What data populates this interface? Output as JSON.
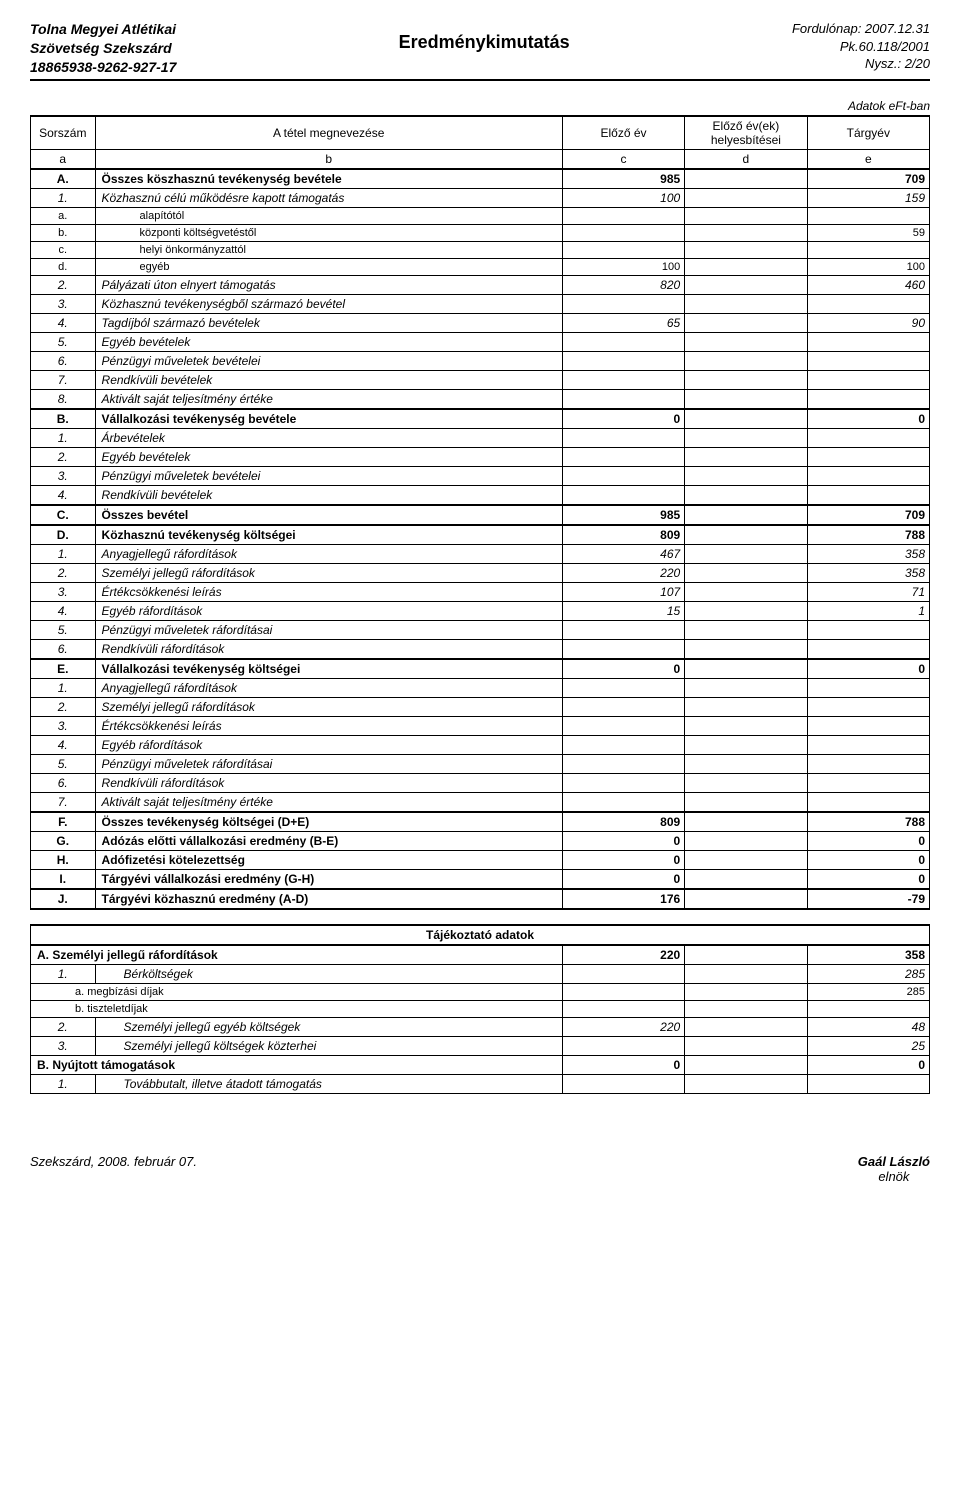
{
  "header": {
    "org_line1": "Tolna Megyei Atlétikai",
    "org_line2": "Szövetség  Szekszárd",
    "org_line3": "18865938-9262-927-17",
    "title": "Eredménykimutatás",
    "right_line1": "Fordulónap: 2007.12.31",
    "right_line2": "Pk.60.118/2001",
    "right_line3": "Nysz.: 2/20"
  },
  "adatok_label": "Adatok eFt-ban",
  "cols": {
    "sorszam": "Sorszám",
    "megnevezes": "A tétel megnevezése",
    "elozo": "Előző év",
    "helyesbites": "Előző év(ek) helyesbítései",
    "targyev": "Tárgyév",
    "a": "a",
    "b": "b",
    "c": "c",
    "d": "d",
    "e": "e"
  },
  "rows": [
    {
      "cls": "row-main",
      "id": "A.",
      "name": "Összes köszhasznú tevékenység bevétele",
      "c": "985",
      "d": "",
      "e": "709"
    },
    {
      "cls": "row-sub",
      "id": "1.",
      "name": "Közhasznú célú működésre kapott támogatás",
      "c": "100",
      "d": "",
      "e": "159"
    },
    {
      "cls": "row-subsub",
      "id": "a.",
      "name": "alapítótól",
      "c": "",
      "d": "",
      "e": ""
    },
    {
      "cls": "row-subsub",
      "id": "b.",
      "name": "központi költségvetéstől",
      "c": "",
      "d": "",
      "e": "59"
    },
    {
      "cls": "row-subsub",
      "id": "c.",
      "name": "helyi önkormányzattól",
      "c": "",
      "d": "",
      "e": ""
    },
    {
      "cls": "row-subsub",
      "id": "d.",
      "name": "egyéb",
      "c": "100",
      "d": "",
      "e": "100"
    },
    {
      "cls": "row-sub",
      "id": "2.",
      "name": "Pályázati úton elnyert támogatás",
      "c": "820",
      "d": "",
      "e": "460"
    },
    {
      "cls": "row-sub",
      "id": "3.",
      "name": "Közhasznú tevékenységből származó bevétel",
      "c": "",
      "d": "",
      "e": ""
    },
    {
      "cls": "row-sub",
      "id": "4.",
      "name": "Tagdíjból származó bevételek",
      "c": "65",
      "d": "",
      "e": "90"
    },
    {
      "cls": "row-sub",
      "id": "5.",
      "name": "Egyéb bevételek",
      "c": "",
      "d": "",
      "e": ""
    },
    {
      "cls": "row-sub",
      "id": "6.",
      "name": "Pénzügyi műveletek bevételei",
      "c": "",
      "d": "",
      "e": ""
    },
    {
      "cls": "row-sub",
      "id": "7.",
      "name": "Rendkívüli bevételek",
      "c": "",
      "d": "",
      "e": ""
    },
    {
      "cls": "row-sub",
      "id": "8.",
      "name": "Aktivált saját teljesítmény értéke",
      "c": "",
      "d": "",
      "e": ""
    },
    {
      "cls": "row-main hb",
      "id": "B.",
      "name": "Vállalkozási tevékenység bevétele",
      "c": "0",
      "d": "",
      "e": "0"
    },
    {
      "cls": "row-sub",
      "id": "1.",
      "name": "Árbevételek",
      "c": "",
      "d": "",
      "e": ""
    },
    {
      "cls": "row-sub",
      "id": "2.",
      "name": "Egyéb bevételek",
      "c": "",
      "d": "",
      "e": ""
    },
    {
      "cls": "row-sub",
      "id": "3.",
      "name": "Pénzügyi műveletek bevételei",
      "c": "",
      "d": "",
      "e": ""
    },
    {
      "cls": "row-sub",
      "id": "4.",
      "name": "Rendkívüli bevételek",
      "c": "",
      "d": "",
      "e": ""
    },
    {
      "cls": "row-main hb",
      "id": "C.",
      "name": "Összes bevétel",
      "c": "985",
      "d": "",
      "e": "709"
    },
    {
      "cls": "row-main hb",
      "id": "D.",
      "name": "Közhasznú tevékenység költségei",
      "c": "809",
      "d": "",
      "e": "788"
    },
    {
      "cls": "row-sub",
      "id": "1.",
      "name": "Anyagjellegű ráfordítások",
      "c": "467",
      "d": "",
      "e": "358"
    },
    {
      "cls": "row-sub",
      "id": "2.",
      "name": "Személyi jellegű ráfordítások",
      "c": "220",
      "d": "",
      "e": "358"
    },
    {
      "cls": "row-sub",
      "id": "3.",
      "name": "Értékcsökkenési leírás",
      "c": "107",
      "d": "",
      "e": "71"
    },
    {
      "cls": "row-sub",
      "id": "4.",
      "name": "Egyéb ráfordítások",
      "c": "15",
      "d": "",
      "e": "1"
    },
    {
      "cls": "row-sub",
      "id": "5.",
      "name": "Pénzügyi műveletek ráfordításai",
      "c": "",
      "d": "",
      "e": ""
    },
    {
      "cls": "row-sub",
      "id": "6.",
      "name": "Rendkívüli ráfordítások",
      "c": "",
      "d": "",
      "e": ""
    },
    {
      "cls": "row-main hb",
      "id": "E.",
      "name": "Vállalkozási tevékenység költségei",
      "c": "0",
      "d": "",
      "e": "0"
    },
    {
      "cls": "row-sub",
      "id": "1.",
      "name": "Anyagjellegű ráfordítások",
      "c": "",
      "d": "",
      "e": ""
    },
    {
      "cls": "row-sub",
      "id": "2.",
      "name": "Személyi jellegű ráfordítások",
      "c": "",
      "d": "",
      "e": ""
    },
    {
      "cls": "row-sub",
      "id": "3.",
      "name": "Értékcsökkenési leírás",
      "c": "",
      "d": "",
      "e": ""
    },
    {
      "cls": "row-sub",
      "id": "4.",
      "name": "Egyéb ráfordítások",
      "c": "",
      "d": "",
      "e": ""
    },
    {
      "cls": "row-sub",
      "id": "5.",
      "name": "Pénzügyi műveletek ráfordításai",
      "c": "",
      "d": "",
      "e": ""
    },
    {
      "cls": "row-sub",
      "id": "6.",
      "name": "Rendkívüli ráfordítások",
      "c": "",
      "d": "",
      "e": ""
    },
    {
      "cls": "row-sub",
      "id": "7.",
      "name": "Aktivált saját teljesítmény értéke",
      "c": "",
      "d": "",
      "e": ""
    },
    {
      "cls": "row-bold hb",
      "id": "F.",
      "name": "Összes tevékenység költségei (D+E)",
      "c": "809",
      "d": "",
      "e": "788"
    },
    {
      "cls": "row-bold",
      "id": "G.",
      "name": "Adózás előtti vállalkozási eredmény (B-E)",
      "c": "0",
      "d": "",
      "e": "0"
    },
    {
      "cls": "row-bold",
      "id": "H.",
      "name": "Adófizetési kötelezettség",
      "c": "0",
      "d": "",
      "e": "0"
    },
    {
      "cls": "row-bold",
      "id": "I.",
      "name": "Tárgyévi vállalkozási eredmény (G-H)",
      "c": "0",
      "d": "",
      "e": "0"
    },
    {
      "cls": "row-main hb hbr",
      "id": "J.",
      "name": "Tárgyévi közhasznú eredmény (A-D)",
      "c": "176",
      "d": "",
      "e": "-79"
    }
  ],
  "aux": {
    "title": "Tájékoztató adatok",
    "rows": [
      {
        "cls": "row-bold",
        "id": "",
        "name": "A. Személyi jellegű ráfordítások",
        "c": "220",
        "d": "",
        "e": "358",
        "pad": "name-pad"
      },
      {
        "cls": "row-sub",
        "id": "1.",
        "name": "Bérköltségek",
        "c": "",
        "d": "",
        "e": "285",
        "pad": "name-pad2"
      },
      {
        "cls": "row-subsub",
        "id": "",
        "name": "a. megbízási díjak",
        "c": "",
        "d": "",
        "e": "285",
        "pad": "name-pad3"
      },
      {
        "cls": "row-subsub",
        "id": "",
        "name": "b. tiszteletdíjak",
        "c": "",
        "d": "",
        "e": "",
        "pad": "name-pad3"
      },
      {
        "cls": "row-sub",
        "id": "2.",
        "name": "Személyi jellegű egyéb költségek",
        "c": "220",
        "d": "",
        "e": "48",
        "pad": "name-pad2"
      },
      {
        "cls": "row-sub",
        "id": "3.",
        "name": "Személyi jellegű költségek közterhei",
        "c": "",
        "d": "",
        "e": "25",
        "pad": "name-pad2"
      },
      {
        "cls": "row-bold",
        "id": "",
        "name": "B. Nyújtott támogatások",
        "c": "0",
        "d": "",
        "e": "0",
        "pad": "name-pad"
      },
      {
        "cls": "row-sub",
        "id": "1.",
        "name": "Továbbutalt, illetve átadott támogatás",
        "c": "",
        "d": "",
        "e": "",
        "pad": "name-pad2"
      }
    ]
  },
  "footer": {
    "left": "Szekszárd, 2008. február 07.",
    "signer_name": "Gaál László",
    "signer_role": "elnök"
  }
}
